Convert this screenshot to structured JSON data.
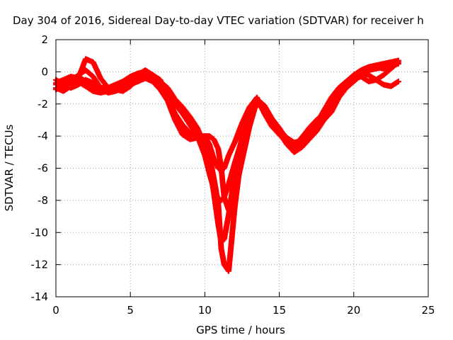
{
  "chart_data": {
    "type": "scatter",
    "title": "Day 304 of 2016, Sidereal Day-to-day VTEC variation (SDTVAR) for receiver h",
    "xlabel": "GPS time / hours",
    "ylabel": "SDTVAR / TECUs",
    "xlim": [
      0,
      25
    ],
    "ylim": [
      -14,
      2
    ],
    "xticks": [
      0,
      5,
      10,
      15,
      20,
      25
    ],
    "yticks": [
      -14,
      -12,
      -10,
      -8,
      -6,
      -4,
      -2,
      0,
      2
    ],
    "grid": true,
    "marker": "plus",
    "color": "#ff0000",
    "series": [
      {
        "x": [
          0,
          0.5,
          1,
          1.5,
          2,
          2.5,
          3,
          3.5,
          4,
          4.5,
          5,
          5.5,
          6,
          6.5,
          7,
          7.5,
          8,
          8.5,
          9,
          9.5,
          10,
          10.3,
          10.6,
          10.9,
          11.1,
          11.3,
          11.6,
          12,
          12.5,
          13,
          13.5,
          14,
          14.5,
          15,
          15.5,
          16,
          16.5,
          17,
          17.5,
          18,
          18.5,
          19,
          19.5,
          20,
          20.5,
          21,
          21.5,
          22,
          22.5,
          23
        ],
        "values": [
          -0.8,
          -0.6,
          -0.4,
          -0.3,
          -0.6,
          -0.9,
          -1.1,
          -1.1,
          -0.9,
          -0.7,
          -0.5,
          -0.3,
          -0.2,
          -0.4,
          -0.8,
          -1.3,
          -2.0,
          -2.6,
          -3.3,
          -4.0,
          -5.2,
          -6.3,
          -7.3,
          -7.9,
          -8.0,
          -7.8,
          -7.0,
          -5.7,
          -4.2,
          -2.8,
          -2.0,
          -2.3,
          -3.0,
          -3.6,
          -4.1,
          -4.4,
          -4.3,
          -4.0,
          -3.6,
          -3.0,
          -2.2,
          -1.4,
          -0.8,
          -0.4,
          -0.1,
          0.1,
          0.2,
          0.3,
          0.4,
          0.5
        ]
      },
      {
        "x": [
          0,
          0.5,
          1,
          1.5,
          2,
          2.5,
          3,
          3.5,
          4,
          4.5,
          5,
          5.5,
          6,
          6.5,
          7,
          7.5,
          8,
          8.5,
          9,
          9.5,
          10,
          10.3,
          10.6,
          10.9,
          11.1,
          11.3,
          11.6,
          12,
          12.5,
          13,
          13.5,
          14,
          14.5,
          15,
          15.5,
          16,
          16.5,
          17,
          17.5,
          18,
          18.5,
          19,
          19.5,
          20,
          20.5,
          21,
          21.5,
          22,
          22.5,
          23
        ],
        "values": [
          -1.1,
          -0.9,
          -0.6,
          -0.2,
          0.1,
          -0.3,
          -1.0,
          -1.3,
          -1.2,
          -1.0,
          -0.6,
          -0.2,
          0.1,
          -0.2,
          -0.6,
          -1.0,
          -1.7,
          -2.2,
          -2.8,
          -3.5,
          -4.6,
          -5.8,
          -7.5,
          -9.5,
          -10.6,
          -10.4,
          -8.9,
          -6.4,
          -4.0,
          -2.6,
          -1.7,
          -2.1,
          -2.9,
          -3.5,
          -4.2,
          -4.6,
          -4.4,
          -3.9,
          -3.2,
          -2.4,
          -1.6,
          -1.0,
          -0.6,
          -0.2,
          0.1,
          0.3,
          0.4,
          0.5,
          0.6,
          0.7
        ]
      },
      {
        "x": [
          0,
          0.5,
          1,
          1.5,
          2,
          2.5,
          3,
          3.5,
          4,
          4.5,
          5,
          5.5,
          6,
          6.5,
          7,
          7.5,
          8,
          8.5,
          9,
          9.5,
          10,
          10.3,
          10.6,
          10.9,
          11.1,
          11.3,
          11.6,
          12,
          12.5,
          13,
          13.5,
          14,
          14.5,
          15,
          15.5,
          16,
          16.5,
          17,
          17.5,
          18,
          18.5,
          19,
          19.5,
          20,
          20.5,
          21,
          21.5,
          22,
          22.5,
          23
        ],
        "values": [
          -0.5,
          -0.8,
          -1.0,
          -0.8,
          -0.5,
          -0.7,
          -1.0,
          -1.0,
          -0.8,
          -0.6,
          -0.3,
          -0.1,
          0.0,
          -0.3,
          -0.7,
          -1.6,
          -2.6,
          -3.3,
          -3.8,
          -4.0,
          -4.0,
          -4.5,
          -5.4,
          -6.0,
          -6.1,
          -6.0,
          -5.2,
          -4.4,
          -3.2,
          -2.2,
          -1.6,
          -2.6,
          -3.4,
          -3.9,
          -4.4,
          -4.6,
          -4.1,
          -3.5,
          -3.0,
          -2.6,
          -2.0,
          -1.3,
          -0.7,
          -0.3,
          0.0,
          -0.2,
          -0.5,
          -0.8,
          -0.9,
          -0.6
        ]
      },
      {
        "x": [
          0,
          0.5,
          1,
          1.5,
          2,
          2.5,
          3,
          3.5,
          4,
          4.5,
          5,
          5.5,
          6,
          6.5,
          7,
          7.5,
          8,
          8.5,
          9,
          9.5,
          10,
          10.3,
          10.6,
          10.9,
          11.1,
          11.3,
          11.6,
          12,
          12.5,
          13,
          13.5,
          14,
          14.5,
          15,
          15.5,
          16,
          16.5,
          17,
          17.5,
          18,
          18.5,
          19,
          19.5,
          20,
          20.5,
          21,
          21.5,
          22,
          22.5,
          23
        ],
        "values": [
          -0.7,
          -0.5,
          -0.3,
          -0.4,
          0.8,
          0.6,
          -0.4,
          -1.0,
          -1.1,
          -1.2,
          -0.9,
          -0.4,
          -0.1,
          -0.2,
          -0.5,
          -1.4,
          -2.8,
          -3.6,
          -3.9,
          -4.0,
          -4.3,
          -5.2,
          -6.6,
          -8.2,
          -11.0,
          -12.0,
          -12.4,
          -8.5,
          -4.8,
          -3.0,
          -1.9,
          -2.4,
          -3.1,
          -3.6,
          -4.3,
          -4.9,
          -4.6,
          -4.0,
          -3.5,
          -2.9,
          -2.0,
          -1.1,
          -0.7,
          -0.4,
          -0.3,
          -0.6,
          -0.5,
          -0.2,
          0.2,
          0.6
        ]
      },
      {
        "x": [
          0,
          0.5,
          1,
          1.5,
          2,
          2.5,
          3,
          3.5,
          4,
          4.5,
          5,
          5.5,
          6,
          6.5,
          7,
          7.5,
          8,
          8.5,
          9,
          9.5,
          10,
          10.3,
          10.6,
          10.9,
          11.1,
          11.3,
          11.6,
          12,
          12.5,
          13,
          13.5,
          14,
          14.5,
          15,
          15.5,
          16,
          16.5,
          17,
          17.5,
          18,
          18.5,
          19,
          19.5,
          20,
          20.5,
          21,
          21.5,
          22,
          22.5,
          23
        ],
        "values": [
          -1.0,
          -1.2,
          -0.9,
          -0.6,
          -0.9,
          -1.2,
          -1.3,
          -1.2,
          -1.1,
          -1.0,
          -0.8,
          -0.6,
          -0.4,
          -0.6,
          -1.1,
          -1.8,
          -3.0,
          -3.9,
          -4.2,
          -4.1,
          -4.0,
          -4.0,
          -4.2,
          -4.8,
          -6.0,
          -7.8,
          -8.6,
          -7.6,
          -5.5,
          -3.4,
          -1.8,
          -2.5,
          -3.2,
          -3.8,
          -4.5,
          -5.0,
          -4.7,
          -4.2,
          -3.7,
          -3.0,
          -2.5,
          -1.6,
          -1.0,
          -0.6,
          -0.2,
          0.2,
          0.3,
          0.2,
          0.4,
          0.7
        ]
      }
    ]
  }
}
